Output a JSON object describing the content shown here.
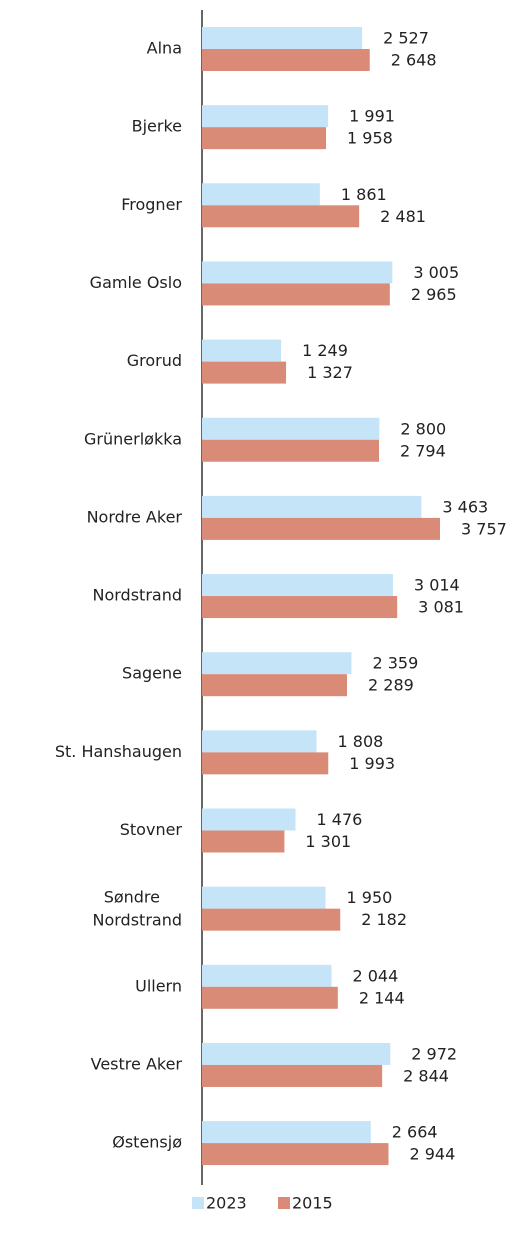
{
  "chart_data": {
    "type": "bar",
    "orientation": "horizontal",
    "categories": [
      "Alna",
      "Bjerke",
      "Frogner",
      "Gamle Oslo",
      "Grorud",
      "Grünerløkka",
      "Nordre Aker",
      "Nordstrand",
      "Sagene",
      "St. Hanshaugen",
      "Stovner",
      "Søndre Nordstrand",
      "Ullern",
      "Vestre Aker",
      "Østensjø"
    ],
    "series": [
      {
        "name": "2023",
        "color": "#c5e4f7",
        "values": [
          2527,
          1991,
          1861,
          3005,
          1249,
          2800,
          3463,
          3014,
          2359,
          1808,
          1476,
          1950,
          2044,
          2972,
          2664
        ],
        "value_labels": [
          "2 527",
          "1 991",
          "1 861",
          "3 005",
          "1 249",
          "2 800",
          "3 463",
          "3 014",
          "2 359",
          "1 808",
          "1 476",
          "1 950",
          "2 044",
          "2 972",
          "2 664"
        ]
      },
      {
        "name": "2015",
        "color": "#d98b78",
        "values": [
          2648,
          1958,
          2481,
          2965,
          1327,
          2794,
          3757,
          3081,
          2289,
          1993,
          1301,
          2182,
          2144,
          2844,
          2944
        ],
        "value_labels": [
          "2 648",
          "1 958",
          "2 481",
          "2 965",
          "1 327",
          "2 794",
          "3 757",
          "3 081",
          "2 289",
          "1 993",
          "1 301",
          "2 182",
          "2 144",
          "2 844",
          "2 944"
        ]
      }
    ],
    "legend": "bottom"
  }
}
